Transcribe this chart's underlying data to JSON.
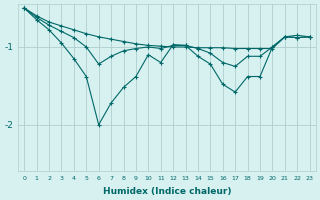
{
  "title": "",
  "xlabel": "Humidex (Indice chaleur)",
  "ylabel": "",
  "background_color": "#d7f0f0",
  "grid_color": "#b0cece",
  "line_color": "#006868",
  "xlim": [
    -0.5,
    23.5
  ],
  "ylim": [
    -2.6,
    -0.45
  ],
  "yticks": [
    -2,
    -1
  ],
  "xticks": [
    0,
    1,
    2,
    3,
    4,
    5,
    6,
    7,
    8,
    9,
    10,
    11,
    12,
    13,
    14,
    15,
    16,
    17,
    18,
    19,
    20,
    21,
    22,
    23
  ],
  "series": [
    {
      "x": [
        0,
        1,
        2,
        3,
        4,
        5,
        6,
        7,
        8,
        9,
        10,
        11,
        12,
        13,
        14,
        15,
        16,
        17,
        18,
        19,
        20,
        21,
        22,
        23
      ],
      "y": [
        -0.5,
        -0.6,
        -0.68,
        -0.73,
        -0.78,
        -0.83,
        -0.87,
        -0.9,
        -0.93,
        -0.96,
        -0.98,
        -0.99,
        -1.0,
        -1.0,
        -1.01,
        -1.01,
        -1.01,
        -1.02,
        -1.02,
        -1.02,
        -1.02,
        -0.87,
        -0.85,
        -0.87
      ]
    },
    {
      "x": [
        0,
        1,
        2,
        3,
        4,
        5,
        6,
        7,
        8,
        9,
        10,
        11,
        12,
        13,
        14,
        15,
        16,
        17,
        18,
        19,
        20,
        21,
        22,
        23
      ],
      "y": [
        -0.5,
        -0.62,
        -0.72,
        -0.8,
        -0.88,
        -1.0,
        -1.22,
        -1.12,
        -1.05,
        -1.02,
        -1.0,
        -1.02,
        -0.98,
        -0.98,
        -1.02,
        -1.08,
        -1.2,
        -1.25,
        -1.12,
        -1.12,
        -1.0,
        -0.87,
        -0.88,
        -0.87
      ]
    },
    {
      "x": [
        0,
        1,
        2,
        3,
        4,
        5,
        6,
        7,
        8,
        9,
        10,
        11,
        12,
        13,
        14,
        15,
        16,
        17,
        18,
        19,
        20,
        21,
        22,
        23
      ],
      "y": [
        -0.5,
        -0.65,
        -0.78,
        -0.95,
        -1.15,
        -1.38,
        -2.0,
        -1.72,
        -1.52,
        -1.38,
        -1.1,
        -1.2,
        -0.97,
        -0.98,
        -1.12,
        -1.22,
        -1.48,
        -1.58,
        -1.38,
        -1.38,
        -1.0,
        -0.87,
        -0.88,
        -0.87
      ]
    }
  ]
}
